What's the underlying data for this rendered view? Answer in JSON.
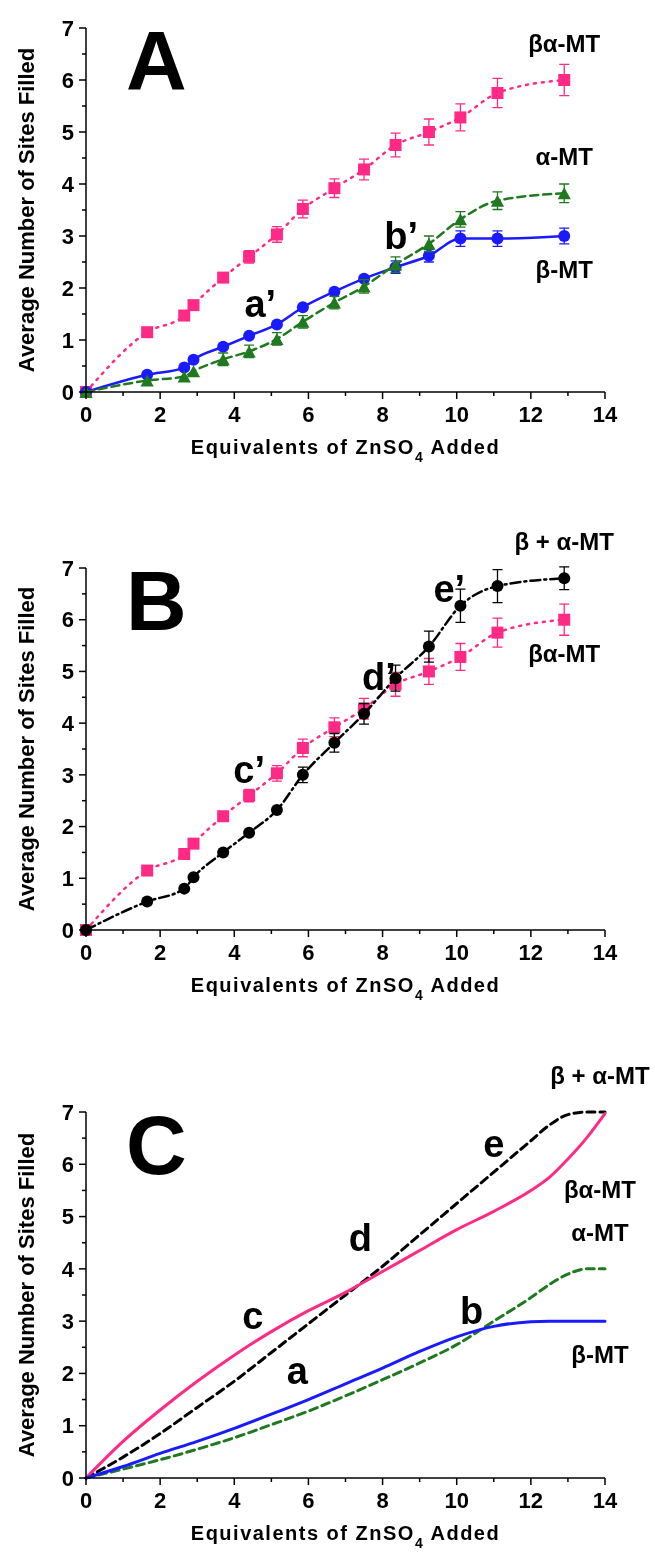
{
  "chart_data": [
    {
      "type": "line",
      "title": "A",
      "xlabel": "Equivalents of ZnSO$_{4}$ Added",
      "ylabel": "Average Number of Sites Filled",
      "xlim": [
        0,
        14
      ],
      "ylim": [
        0,
        7
      ],
      "xticks": [
        0,
        {
          "value": 1,
          "label": null
        },
        2,
        {
          "value": 3,
          "label": null
        },
        4,
        {
          "value": 5,
          "label": null
        },
        6,
        {
          "value": 7,
          "label": null
        },
        8,
        {
          "value": 9,
          "label": null
        },
        10,
        {
          "value": 11,
          "label": null
        },
        12,
        {
          "value": 13,
          "label": null
        },
        14
      ],
      "yticks": [
        0,
        {
          "value": 0.5,
          "label": null
        },
        1,
        {
          "value": 1.5,
          "label": null
        },
        2,
        {
          "value": 2.5,
          "label": null
        },
        3,
        {
          "value": 3.5,
          "label": null
        },
        4,
        {
          "value": 4.5,
          "label": null
        },
        5,
        {
          "value": 5.5,
          "label": null
        },
        6,
        {
          "value": 6.5,
          "label": null
        },
        7
      ],
      "x": [
        0,
        1.65,
        2.65,
        2.9,
        3.7,
        4.4,
        5.15,
        5.85,
        6.7,
        7.5,
        8.35,
        9.25,
        10.1,
        11.1,
        12.9
      ],
      "grid": false,
      "legend": false,
      "series": [
        {
          "name": "βα-MT",
          "color": "#ff2a85",
          "marker": "square",
          "line_style": "dotted",
          "values": [
            0,
            1.15,
            1.47,
            1.67,
            2.2,
            2.6,
            3.03,
            3.52,
            3.92,
            4.28,
            4.75,
            5.0,
            5.28,
            5.75,
            6.0
          ],
          "errors": [
            null,
            null,
            null,
            null,
            null,
            0.12,
            0.15,
            0.17,
            0.18,
            0.2,
            0.23,
            0.25,
            0.26,
            0.28,
            0.3
          ]
        },
        {
          "name": "β-MT",
          "color": "#1a1aff",
          "marker": "circle",
          "line_style": "solid",
          "values": [
            0,
            0.33,
            0.47,
            0.62,
            0.87,
            1.08,
            1.3,
            1.63,
            1.93,
            2.18,
            2.4,
            2.62,
            2.95,
            2.95,
            3.0
          ],
          "errors": [
            null,
            null,
            null,
            null,
            null,
            null,
            null,
            null,
            null,
            null,
            0.12,
            0.12,
            0.15,
            0.15,
            0.15
          ]
        },
        {
          "name": "α-MT",
          "color": "#1f7a1f",
          "marker": "triangle",
          "line_style": "dashed",
          "values": [
            0,
            0.22,
            0.3,
            0.4,
            0.63,
            0.78,
            1.02,
            1.35,
            1.72,
            2.03,
            2.45,
            2.85,
            3.32,
            3.68,
            3.82
          ],
          "errors": [
            null,
            null,
            null,
            null,
            0.12,
            0.12,
            0.12,
            0.12,
            0.12,
            0.13,
            0.15,
            0.15,
            0.15,
            0.17,
            0.18
          ]
        }
      ],
      "annotations": [
        "a’",
        "b’"
      ]
    },
    {
      "type": "line",
      "title": "B",
      "xlabel": "Equivalents of ZnSO$_{4}$ Added",
      "ylabel": "Average Number of Sites Filled",
      "xlim": [
        0,
        14
      ],
      "ylim": [
        0,
        7
      ],
      "xticks": [
        0,
        {
          "value": 1,
          "label": null
        },
        2,
        {
          "value": 3,
          "label": null
        },
        4,
        {
          "value": 5,
          "label": null
        },
        6,
        {
          "value": 7,
          "label": null
        },
        8,
        {
          "value": 9,
          "label": null
        },
        10,
        {
          "value": 11,
          "label": null
        },
        12,
        {
          "value": 13,
          "label": null
        },
        14
      ],
      "yticks": [
        0,
        {
          "value": 0.5,
          "label": null
        },
        1,
        {
          "value": 1.5,
          "label": null
        },
        2,
        {
          "value": 2.5,
          "label": null
        },
        3,
        {
          "value": 3.5,
          "label": null
        },
        4,
        {
          "value": 4.5,
          "label": null
        },
        5,
        {
          "value": 5.5,
          "label": null
        },
        6,
        {
          "value": 6.5,
          "label": null
        },
        7
      ],
      "x": [
        0,
        1.65,
        2.65,
        2.9,
        3.7,
        4.4,
        5.15,
        5.85,
        6.7,
        7.5,
        8.35,
        9.25,
        10.1,
        11.1,
        12.9
      ],
      "grid": false,
      "legend": false,
      "series": [
        {
          "name": "βα-MT",
          "color": "#ff2a85",
          "marker": "square",
          "line_style": "dotted",
          "values": [
            0,
            1.15,
            1.47,
            1.67,
            2.2,
            2.6,
            3.03,
            3.52,
            3.92,
            4.28,
            4.75,
            5.0,
            5.28,
            5.75,
            6.0
          ],
          "errors": [
            null,
            null,
            null,
            null,
            null,
            0.12,
            0.15,
            0.17,
            0.18,
            0.2,
            0.23,
            0.25,
            0.26,
            0.28,
            0.3
          ]
        },
        {
          "name": "β + α-MT",
          "color": "#000000",
          "marker": "circle",
          "line_style": "dashed",
          "values": [
            0,
            0.55,
            0.8,
            1.02,
            1.5,
            1.88,
            2.32,
            3.0,
            3.62,
            4.18,
            4.87,
            5.48,
            6.27,
            6.65,
            6.8
          ],
          "errors": [
            null,
            null,
            null,
            null,
            null,
            null,
            null,
            0.15,
            0.18,
            0.2,
            0.25,
            0.3,
            0.32,
            0.32,
            0.22
          ]
        }
      ],
      "annotations": [
        "c’",
        "d’",
        "e’"
      ]
    },
    {
      "type": "line",
      "title": "C",
      "xlabel": "Equivalents of ZnSO$_{4}$ Added",
      "ylabel": "Average Number of Sites Filled",
      "xlim": [
        0,
        14
      ],
      "ylim": [
        0,
        7
      ],
      "xticks": [
        0,
        {
          "value": 1,
          "label": null
        },
        2,
        {
          "value": 3,
          "label": null
        },
        4,
        {
          "value": 5,
          "label": null
        },
        6,
        {
          "value": 7,
          "label": null
        },
        8,
        {
          "value": 9,
          "label": null
        },
        10,
        {
          "value": 11,
          "label": null
        },
        12,
        {
          "value": 13,
          "label": null
        },
        14
      ],
      "yticks": [
        0,
        {
          "value": 0.5,
          "label": null
        },
        1,
        {
          "value": 1.5,
          "label": null
        },
        2,
        {
          "value": 2.5,
          "label": null
        },
        3,
        {
          "value": 3.5,
          "label": null
        },
        4,
        {
          "value": 4.5,
          "label": null
        },
        5,
        {
          "value": 5.5,
          "label": null
        },
        6,
        {
          "value": 6.5,
          "label": null
        },
        7
      ],
      "x": [
        0,
        1,
        2,
        3,
        4,
        5,
        6,
        7,
        8,
        9,
        10,
        11,
        12,
        12.5,
        13,
        13.5,
        14
      ],
      "grid": false,
      "legend": false,
      "series": [
        {
          "name": "β + α-MT",
          "color": "#000000",
          "marker": "none",
          "line_style": "dashed",
          "values": [
            0,
            0.4,
            0.85,
            1.35,
            1.85,
            2.4,
            2.95,
            3.5,
            4.05,
            4.65,
            5.25,
            5.85,
            6.45,
            6.75,
            6.95,
            7.0,
            7.0
          ]
        },
        {
          "name": "βα-MT",
          "color": "#ff2a85",
          "marker": "none",
          "line_style": "solid",
          "values": [
            0,
            0.7,
            1.3,
            1.85,
            2.35,
            2.8,
            3.2,
            3.55,
            3.95,
            4.35,
            4.75,
            5.1,
            5.5,
            5.75,
            6.1,
            6.5,
            6.97
          ]
        },
        {
          "name": "α-MT",
          "color": "#1f7a1f",
          "marker": "none",
          "line_style": "dashed",
          "values": [
            0,
            0.17,
            0.35,
            0.55,
            0.77,
            1.02,
            1.28,
            1.57,
            1.88,
            2.2,
            2.55,
            3.0,
            3.45,
            3.7,
            3.9,
            4.0,
            4.0
          ]
        },
        {
          "name": "β-MT",
          "color": "#1a1aff",
          "marker": "none",
          "line_style": "solid",
          "values": [
            0,
            0.22,
            0.47,
            0.7,
            0.95,
            1.22,
            1.5,
            1.8,
            2.1,
            2.42,
            2.7,
            2.9,
            2.99,
            3.0,
            3.0,
            3.0,
            3.0
          ]
        }
      ],
      "annotations": [
        "c",
        "d",
        "a",
        "b",
        "e"
      ]
    }
  ]
}
